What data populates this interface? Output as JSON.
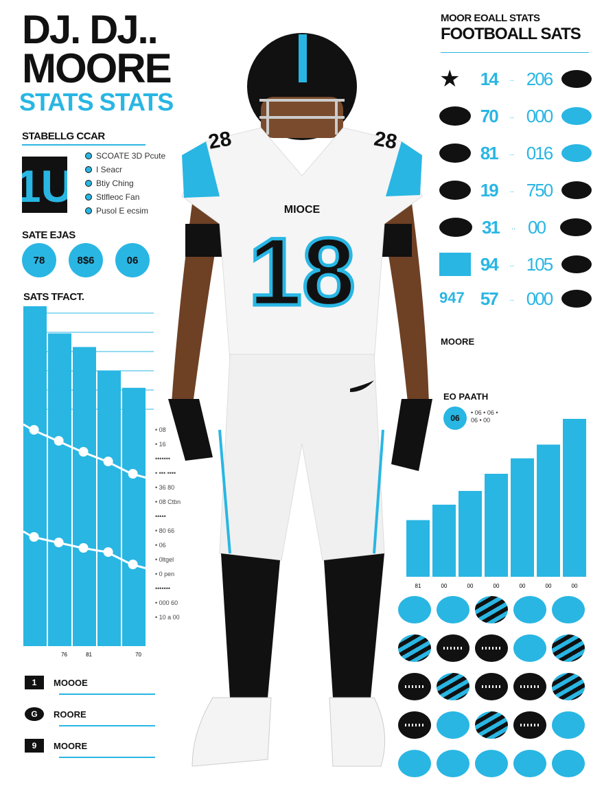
{
  "title": {
    "line1": "DJ. DJ..",
    "line2": "MOORE",
    "line3": "STATS STATS"
  },
  "left_panel": {
    "heading": "STABELLG CCAR",
    "big_number": "1U",
    "legend": [
      "SCOATE 3D Pcute",
      "I Seacr",
      "Btiy Ching",
      "Stlfleoc Fan",
      "Pusol E ecsim"
    ],
    "section2_heading": "SATE EJAS",
    "circle_stats": [
      "78",
      "8$6",
      "06"
    ],
    "section3_heading": "SATS TFACT.",
    "bar_values": [
      100,
      92,
      88,
      81,
      76
    ],
    "bar_labels": [
      "",
      "76",
      "81",
      "",
      "70"
    ],
    "side_labels": [
      "",
      "• 08",
      "• 16",
      "•••••••",
      "• ••• ••••",
      "• 36 80",
      "• 08 Ctbn",
      "•••••",
      "• 80 66",
      "• 06",
      "• 0ltgel",
      "• 0 pen",
      "•••••••",
      "• 000 60",
      "• 10 a 00"
    ]
  },
  "bottom_left": [
    {
      "badge": "1",
      "label": "MOOOE"
    },
    {
      "badge": "G",
      "label": "ROORE"
    },
    {
      "badge": "9",
      "label": "MOORE"
    }
  ],
  "player": {
    "jersey_number": "18",
    "jersey_text": "MIOCE",
    "shoulder_number": "28"
  },
  "right_panel": {
    "subtitle": "MOOR EOALL STATS",
    "title": "FOOTBOALL SATS",
    "stat_rows": [
      {
        "left": "14",
        "right": "206"
      },
      {
        "left": "70",
        "right": "000"
      },
      {
        "left": "81",
        "right": "016"
      },
      {
        "left": "19",
        "right": "750"
      },
      {
        "left": "31",
        "right": "00"
      },
      {
        "left": "94",
        "right": "105"
      },
      {
        "left": "57",
        "right": "000"
      }
    ],
    "moore_label": "MOORE",
    "moore_value": "947",
    "eo_label": "EO PAATH",
    "eo_circle": "06",
    "eo_text": "• 06 • 06 • 06 • 00",
    "bars": [
      33,
      42,
      50,
      60,
      69,
      77,
      92
    ],
    "bar_labels": [
      "81",
      "00",
      "00",
      "00",
      "00",
      "00",
      "00"
    ],
    "colors": {
      "accent": "#29b6e3",
      "dark": "#111111"
    }
  }
}
